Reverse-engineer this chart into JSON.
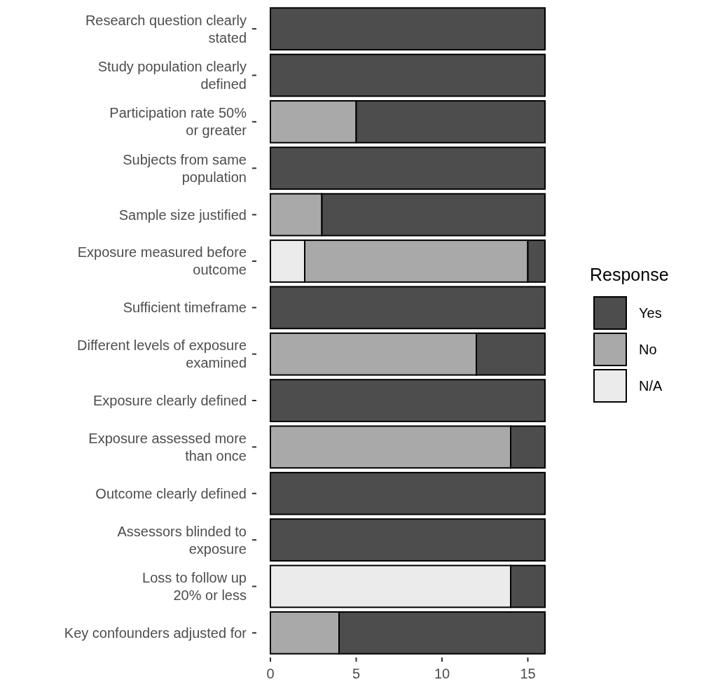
{
  "chart_data": {
    "type": "bar",
    "orientation": "horizontal",
    "stacked": true,
    "legend": "right",
    "legend_title": "Response",
    "grid": false,
    "categories": [
      "Research question clearly\nstated",
      "Study population clearly\ndefined",
      "Participation rate 50%\nor greater",
      "Subjects from same\npopulation",
      "Sample size justified",
      "Exposure measured before\noutcome",
      "Sufficient timeframe",
      "Different levels of exposure\nexamined",
      "Exposure clearly defined",
      "Exposure assessed more\nthan once",
      "Outcome clearly defined",
      "Assessors blinded to\nexposure",
      "Loss to follow up\n20% or less",
      "Key confounders adjusted for"
    ],
    "xlim": [
      0,
      16
    ],
    "xticks": [
      0,
      5,
      10,
      15
    ],
    "series": [
      {
        "name": "N/A",
        "color": "#ebebeb",
        "values": [
          0,
          0,
          0,
          0,
          0,
          2,
          0,
          0,
          0,
          0,
          0,
          0,
          14,
          0
        ]
      },
      {
        "name": "No",
        "color": "#a9a9a9",
        "values": [
          0,
          0,
          5,
          0,
          3,
          13,
          0,
          12,
          0,
          14,
          0,
          0,
          0,
          4
        ]
      },
      {
        "name": "Yes",
        "color": "#4d4d4d",
        "values": [
          16,
          16,
          11,
          16,
          13,
          1,
          16,
          4,
          16,
          2,
          16,
          16,
          2,
          12
        ]
      }
    ]
  }
}
